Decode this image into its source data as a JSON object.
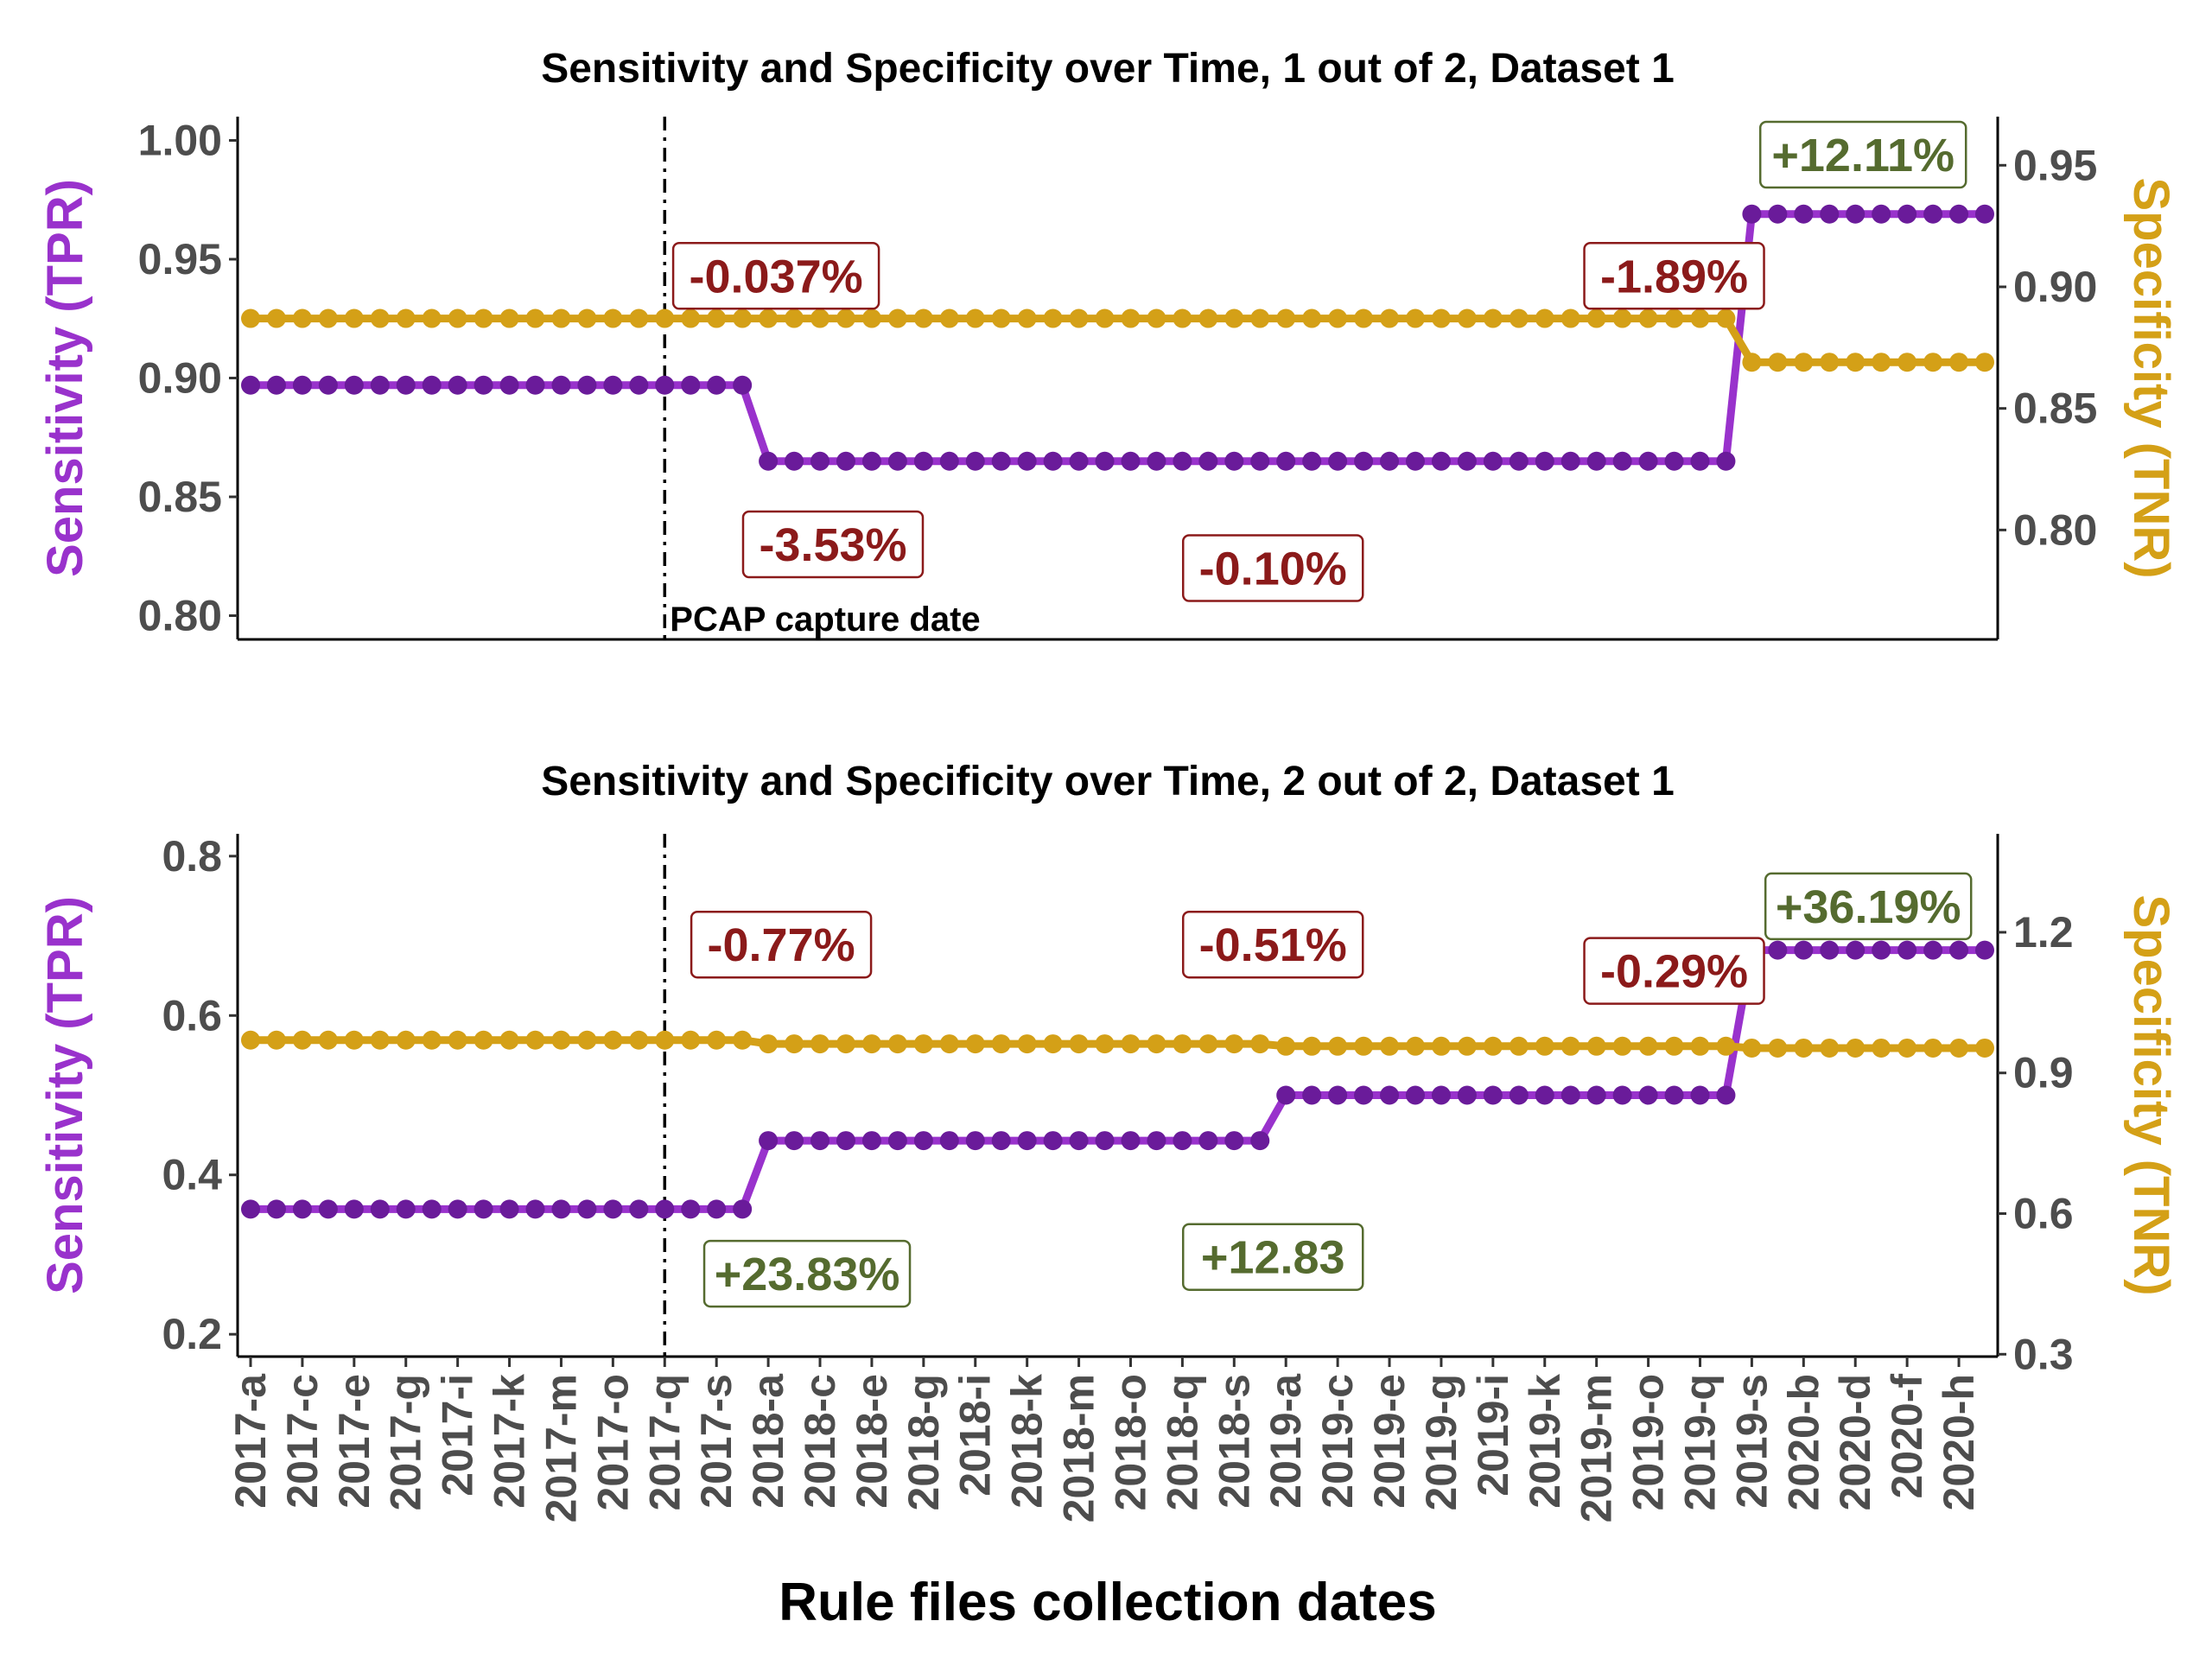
{
  "colors": {
    "sensitivity_point": "#6a1b9a",
    "sensitivity_line": "#9932cc",
    "specificity": "#d4a017",
    "negative": "#8b1a1a",
    "positive": "#556b2f",
    "axis_text": "#4d4d4d"
  },
  "xlabel": "Rule files collection dates",
  "x_tick_labels": [
    "2017-a",
    "2017-c",
    "2017-e",
    "2017-g",
    "2017-i",
    "2017-k",
    "2017-m",
    "2017-o",
    "2017-q",
    "2017-s",
    "2018-a",
    "2018-c",
    "2018-e",
    "2018-g",
    "2018-i",
    "2018-k",
    "2018-m",
    "2018-o",
    "2018-q",
    "2018-s",
    "2019-a",
    "2019-c",
    "2019-e",
    "2019-g",
    "2019-i",
    "2019-k",
    "2019-m",
    "2019-o",
    "2019-q",
    "2019-s",
    "2020-b",
    "2020-d",
    "2020-f",
    "2020-h"
  ],
  "chart_data": [
    {
      "type": "line",
      "title": "Sensitivity and Specificity over Time, 1 out of 2, Dataset 1",
      "ylabel": "Sensitivity (TPR)",
      "y2label": "Specificity (TNR)",
      "ylim": [
        0.79,
        1.01
      ],
      "y2lim": [
        0.755,
        0.97
      ],
      "yticks": [
        "0.80",
        "0.85",
        "0.90",
        "0.95",
        "1.00"
      ],
      "y2ticks": [
        "0.80",
        "0.85",
        "0.90",
        "0.95"
      ],
      "legend": "none",
      "grid": false,
      "vline": {
        "x": 16,
        "label": "PCAP capture date"
      },
      "series": [
        {
          "axis": "left",
          "segments": [
            {
              "from": 0,
              "to": 19,
              "value": 0.897
            },
            {
              "from": 20,
              "to": 57,
              "value": 0.865
            },
            {
              "from": 58,
              "to": 67,
              "value": 0.969
            }
          ]
        },
        {
          "axis": "right",
          "segments": [
            {
              "from": 0,
              "to": 57,
              "value": 0.887
            },
            {
              "from": 58,
              "to": 67,
              "value": 0.869
            }
          ]
        }
      ],
      "annotations": [
        {
          "text": "-0.037%",
          "x": 20.3,
          "y": 0.943,
          "sign": "neg"
        },
        {
          "text": "-3.53%",
          "x": 22.5,
          "y": 0.83,
          "sign": "neg"
        },
        {
          "text": "-0.10%",
          "x": 39.5,
          "y": 0.82,
          "sign": "neg"
        },
        {
          "text": "-1.89%",
          "x": 55,
          "y": 0.943,
          "sign": "neg"
        },
        {
          "text": "+12.11%",
          "x": 62.3,
          "y": 0.994,
          "sign": "pos"
        }
      ]
    },
    {
      "type": "line",
      "title": "Sensitivity and Specificity over Time, 2 out of 2, Dataset 1",
      "ylabel": "Sensitivity (TPR)",
      "y2label": "Specificity (TNR)",
      "ylim": [
        0.172,
        0.828
      ],
      "y2lim": [
        0.295,
        1.41
      ],
      "yticks": [
        "0.2",
        "0.4",
        "0.6",
        "0.8"
      ],
      "y2ticks": [
        "0.3",
        "0.6",
        "0.9",
        "1.2"
      ],
      "legend": "none",
      "grid": false,
      "vline": {
        "x": 16
      },
      "series": [
        {
          "axis": "left",
          "segments": [
            {
              "from": 0,
              "to": 19,
              "value": 0.357
            },
            {
              "from": 20,
              "to": 39,
              "value": 0.443
            },
            {
              "from": 40,
              "to": 57,
              "value": 0.5
            },
            {
              "from": 58,
              "to": 67,
              "value": 0.682
            }
          ]
        },
        {
          "axis": "right",
          "segments": [
            {
              "from": 0,
              "to": 19,
              "value": 0.97
            },
            {
              "from": 20,
              "to": 39,
              "value": 0.962
            },
            {
              "from": 40,
              "to": 57,
              "value": 0.957
            },
            {
              "from": 58,
              "to": 67,
              "value": 0.953
            }
          ]
        }
      ],
      "annotations": [
        {
          "text": "-0.77%",
          "x": 20.5,
          "y": 0.689,
          "sign": "neg"
        },
        {
          "text": "+23.83%",
          "x": 21.5,
          "y": 0.276,
          "sign": "pos"
        },
        {
          "text": "-0.51%",
          "x": 39.5,
          "y": 0.689,
          "sign": "neg"
        },
        {
          "text": "+12.83",
          "x": 39.5,
          "y": 0.297,
          "sign": "pos"
        },
        {
          "text": "-0.29%",
          "x": 55,
          "y": 0.656,
          "sign": "neg"
        },
        {
          "text": "+36.19%",
          "x": 62.5,
          "y": 0.737,
          "sign": "pos"
        }
      ]
    }
  ]
}
